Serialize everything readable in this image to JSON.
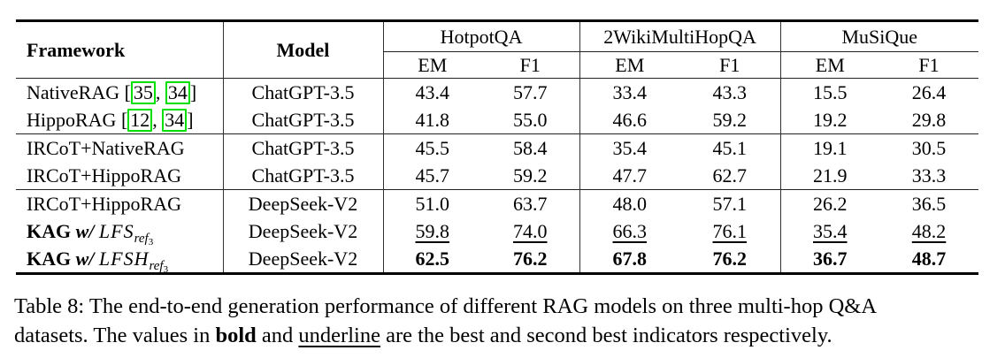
{
  "colors": {
    "citation_box": "#00e000"
  },
  "table": {
    "header": {
      "framework": "Framework",
      "model": "Model",
      "groups": [
        {
          "name": "HotpotQA",
          "metrics": [
            "EM",
            "F1"
          ]
        },
        {
          "name": "2WikiMultiHopQA",
          "metrics": [
            "EM",
            "F1"
          ]
        },
        {
          "name": "MuSiQue",
          "metrics": [
            "EM",
            "F1"
          ]
        }
      ]
    },
    "meta": {
      "citation_open": "[",
      "citation_separator": ", ",
      "citation_close": "]"
    },
    "rows": [
      {
        "framework": {
          "text": "NativeRAG",
          "citations": [
            "35",
            "34"
          ]
        },
        "model": "ChatGPT-3.5",
        "values": [
          "43.4",
          "57.7",
          "33.4",
          "43.3",
          "15.5",
          "26.4"
        ],
        "style": "normal",
        "section_start": false
      },
      {
        "framework": {
          "text": "HippoRAG",
          "citations": [
            "12",
            "34"
          ]
        },
        "model": "ChatGPT-3.5",
        "values": [
          "41.8",
          "55.0",
          "46.6",
          "59.2",
          "19.2",
          "29.8"
        ],
        "style": "normal",
        "section_start": false
      },
      {
        "framework": {
          "text": "IRCoT+NativeRAG"
        },
        "model": "ChatGPT-3.5",
        "values": [
          "45.5",
          "58.4",
          "35.4",
          "45.1",
          "19.1",
          "30.5"
        ],
        "style": "normal",
        "section_start": true
      },
      {
        "framework": {
          "text": "IRCoT+HippoRAG"
        },
        "model": "ChatGPT-3.5",
        "values": [
          "45.7",
          "59.2",
          "47.7",
          "62.7",
          "21.9",
          "33.3"
        ],
        "style": "normal",
        "section_start": false
      },
      {
        "framework": {
          "text": "IRCoT+HippoRAG"
        },
        "model": "DeepSeek-V2",
        "values": [
          "51.0",
          "63.7",
          "48.0",
          "57.1",
          "26.2",
          "36.5"
        ],
        "style": "normal",
        "section_start": true
      },
      {
        "framework": {
          "kag": true,
          "bold": "KAG",
          "connector": "w/",
          "var": "LFS",
          "sub": "ref",
          "subsub": "3"
        },
        "model": "DeepSeek-V2",
        "values": [
          "59.8",
          "74.0",
          "66.3",
          "76.1",
          "35.4",
          "48.2"
        ],
        "style": "underline",
        "section_start": false
      },
      {
        "framework": {
          "kag": true,
          "bold": "KAG",
          "connector": "w/",
          "var": "LFSH",
          "sub": "ref",
          "subsub": "3"
        },
        "model": "DeepSeek-V2",
        "values": [
          "62.5",
          "76.2",
          "67.8",
          "76.2",
          "36.7",
          "48.7"
        ],
        "style": "bold",
        "section_start": false
      }
    ]
  },
  "caption": {
    "line1": "Table 8: The end-to-end generation performance of different RAG models on three multi-hop Q&A",
    "line2": {
      "before": "datasets. The values in ",
      "bold_word": "bold",
      "middle": " and ",
      "underline_word": "underline",
      "after": " are the best and second best indicators respectively."
    }
  }
}
